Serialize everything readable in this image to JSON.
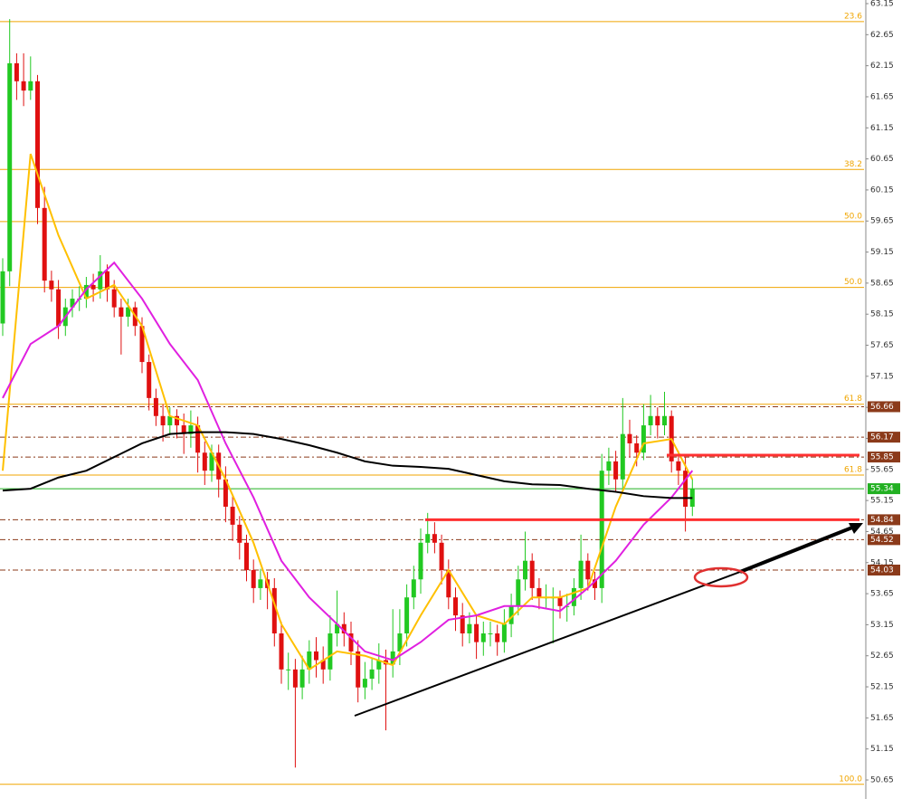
{
  "chart_data": {
    "type": "candlestick",
    "ylim": [
      50.65,
      63.15
    ],
    "yticks": [
      63.15,
      62.65,
      62.15,
      61.65,
      61.15,
      60.65,
      60.15,
      59.65,
      59.15,
      58.65,
      58.15,
      57.65,
      57.15,
      56.65,
      56.15,
      55.65,
      55.15,
      54.65,
      54.15,
      53.65,
      53.15,
      52.65,
      52.15,
      51.65,
      51.15,
      50.65
    ],
    "up_color": "#22c922",
    "down_color": "#e01010",
    "open": [
      58.0,
      58.84,
      62.19,
      61.9,
      61.75,
      61.9,
      59.86,
      58.69,
      58.55,
      57.96,
      58.26,
      58.4,
      58.4,
      58.62,
      58.55,
      58.84,
      58.55,
      58.26,
      58.11,
      58.26,
      57.96,
      57.38,
      56.8,
      56.51,
      56.36,
      56.51,
      56.36,
      56.22,
      56.36,
      55.92,
      55.63,
      55.92,
      55.49,
      55.05,
      54.76,
      54.47,
      54.03,
      53.74,
      53.88,
      53.74,
      53.01,
      52.43,
      52.43,
      52.14,
      52.43,
      52.72,
      52.58,
      52.43,
      53.01,
      53.16,
      53.01,
      52.72,
      52.14,
      52.28,
      52.43,
      52.58,
      52.51,
      52.72,
      53.01,
      53.59,
      53.88,
      54.47,
      54.61,
      54.47,
      54.03,
      53.59,
      53.3,
      53.01,
      53.16,
      52.87,
      53.01,
      53.01,
      52.87,
      53.16,
      53.45,
      53.88,
      54.18,
      53.74,
      53.59,
      53.59,
      53.59,
      53.45,
      53.45,
      53.74,
      54.18,
      53.88,
      53.74,
      55.63,
      55.78,
      55.49,
      56.22,
      56.07,
      55.92,
      56.36,
      56.51,
      56.36,
      56.51,
      55.78,
      55.63,
      55.05
    ],
    "high": [
      59.05,
      62.9,
      62.35,
      62.35,
      62.3,
      62.0,
      60.2,
      58.85,
      58.7,
      58.4,
      58.55,
      58.6,
      58.75,
      58.8,
      59.1,
      58.95,
      58.7,
      58.4,
      58.4,
      58.35,
      58.1,
      57.5,
      56.95,
      56.7,
      56.65,
      56.62,
      56.55,
      56.6,
      56.5,
      56.1,
      56.05,
      56.05,
      55.7,
      55.25,
      54.9,
      54.6,
      54.2,
      54.05,
      54.0,
      53.9,
      53.2,
      52.7,
      52.6,
      52.65,
      52.9,
      52.95,
      52.8,
      53.3,
      53.7,
      53.35,
      53.2,
      52.9,
      52.55,
      52.6,
      52.85,
      52.75,
      53.4,
      53.4,
      53.8,
      54.1,
      54.7,
      54.95,
      54.8,
      54.6,
      54.2,
      53.75,
      53.5,
      53.35,
      53.3,
      53.2,
      53.2,
      53.15,
      53.4,
      53.65,
      54.1,
      54.65,
      54.3,
      53.9,
      53.8,
      53.75,
      53.7,
      53.65,
      53.9,
      54.6,
      54.3,
      54.0,
      55.9,
      56.0,
      55.95,
      56.8,
      56.45,
      56.2,
      56.7,
      56.85,
      56.65,
      56.9,
      56.6,
      55.95,
      55.85,
      55.5
    ],
    "low": [
      57.8,
      58.6,
      61.6,
      61.5,
      61.6,
      59.6,
      58.5,
      58.35,
      57.75,
      57.8,
      58.1,
      58.2,
      58.25,
      58.35,
      58.4,
      58.35,
      58.1,
      57.5,
      57.95,
      57.8,
      57.2,
      56.6,
      56.35,
      56.1,
      56.2,
      56.15,
      55.9,
      56.0,
      55.6,
      55.4,
      55.45,
      55.2,
      54.8,
      54.5,
      54.2,
      53.85,
      53.5,
      53.55,
      53.4,
      52.8,
      52.2,
      52.1,
      50.85,
      51.95,
      52.2,
      52.3,
      52.2,
      52.25,
      52.8,
      52.8,
      52.5,
      51.9,
      51.95,
      52.1,
      52.2,
      51.45,
      52.3,
      52.5,
      52.8,
      53.4,
      53.65,
      54.3,
      54.3,
      53.8,
      53.4,
      53.05,
      52.8,
      52.85,
      52.6,
      52.65,
      52.8,
      52.65,
      52.7,
      52.95,
      53.3,
      53.7,
      53.55,
      53.4,
      53.4,
      52.85,
      53.25,
      53.2,
      53.3,
      53.55,
      53.7,
      53.55,
      53.5,
      55.4,
      55.3,
      55.3,
      55.85,
      55.7,
      55.8,
      56.2,
      56.15,
      56.2,
      55.6,
      55.4,
      54.65,
      54.9
    ],
    "close": [
      58.84,
      62.19,
      61.9,
      61.75,
      61.9,
      59.86,
      58.69,
      58.55,
      57.96,
      58.26,
      58.4,
      58.4,
      58.62,
      58.55,
      58.84,
      58.55,
      58.26,
      58.11,
      58.26,
      57.96,
      57.38,
      56.8,
      56.51,
      56.36,
      56.51,
      56.36,
      56.22,
      56.36,
      55.92,
      55.63,
      55.92,
      55.49,
      55.05,
      54.76,
      54.47,
      54.03,
      53.74,
      53.88,
      53.74,
      53.01,
      52.43,
      52.43,
      52.14,
      52.43,
      52.72,
      52.58,
      52.43,
      53.01,
      53.16,
      53.01,
      52.72,
      52.14,
      52.28,
      52.43,
      52.58,
      52.51,
      52.72,
      53.01,
      53.59,
      53.88,
      54.47,
      54.61,
      54.47,
      54.03,
      53.59,
      53.3,
      53.01,
      53.16,
      52.87,
      53.01,
      53.01,
      52.87,
      53.16,
      53.45,
      53.88,
      54.18,
      53.74,
      53.59,
      53.59,
      53.59,
      53.45,
      53.45,
      53.74,
      54.18,
      53.88,
      53.74,
      55.63,
      55.78,
      55.49,
      56.22,
      56.07,
      55.92,
      56.36,
      56.51,
      56.36,
      56.51,
      55.78,
      55.63,
      55.05,
      55.34
    ],
    "ma_x": [
      0,
      4,
      8,
      12,
      16,
      20,
      24,
      28,
      32,
      36,
      40,
      44,
      48,
      52,
      56,
      60,
      64,
      68,
      72,
      76,
      80,
      84,
      88,
      92,
      96,
      99
    ],
    "moving_averages": [
      {
        "color": "#ffc000",
        "values": [
          55.63,
          60.73,
          59.42,
          58.4,
          58.62,
          57.96,
          56.51,
          56.36,
          55.49,
          54.47,
          53.16,
          52.43,
          52.72,
          52.65,
          52.5,
          53.3,
          54.03,
          53.3,
          53.16,
          53.59,
          53.59,
          53.74,
          55.05,
          56.07,
          56.14,
          55.49
        ]
      },
      {
        "color": "#e020e0",
        "values": [
          56.8,
          57.67,
          57.96,
          58.55,
          58.98,
          58.4,
          57.67,
          57.09,
          56.07,
          55.2,
          54.18,
          53.59,
          53.16,
          52.72,
          52.58,
          52.87,
          53.23,
          53.3,
          53.45,
          53.45,
          53.37,
          53.74,
          54.18,
          54.76,
          55.2,
          55.63
        ]
      },
      {
        "color": "#000000",
        "values": [
          55.31,
          55.34,
          55.52,
          55.63,
          55.85,
          56.07,
          56.22,
          56.25,
          56.25,
          56.22,
          56.14,
          56.04,
          55.92,
          55.78,
          55.71,
          55.69,
          55.66,
          55.56,
          55.46,
          55.41,
          55.4,
          55.34,
          55.29,
          55.22,
          55.19,
          55.19
        ]
      }
    ],
    "fib_color": "#f0a500",
    "fib_levels": [
      {
        "label": "23.6",
        "price": 62.86
      },
      {
        "label": "38.2",
        "price": 60.48
      },
      {
        "label": "50.0",
        "price": 59.64
      },
      {
        "label": "50.0",
        "price": 58.58
      },
      {
        "label": "61.8",
        "price": 56.7
      },
      {
        "label": "61.8",
        "price": 55.56
      },
      {
        "label": "100.0",
        "price": 50.58
      }
    ],
    "level_color": "#8b3a1a",
    "levels": [
      56.66,
      56.17,
      55.85,
      54.84,
      54.52,
      54.03
    ],
    "last_price": 55.34,
    "last_price_color": "#22b022",
    "resistance_color": "#ff3030",
    "resistance": [
      55.88,
      54.84
    ]
  }
}
